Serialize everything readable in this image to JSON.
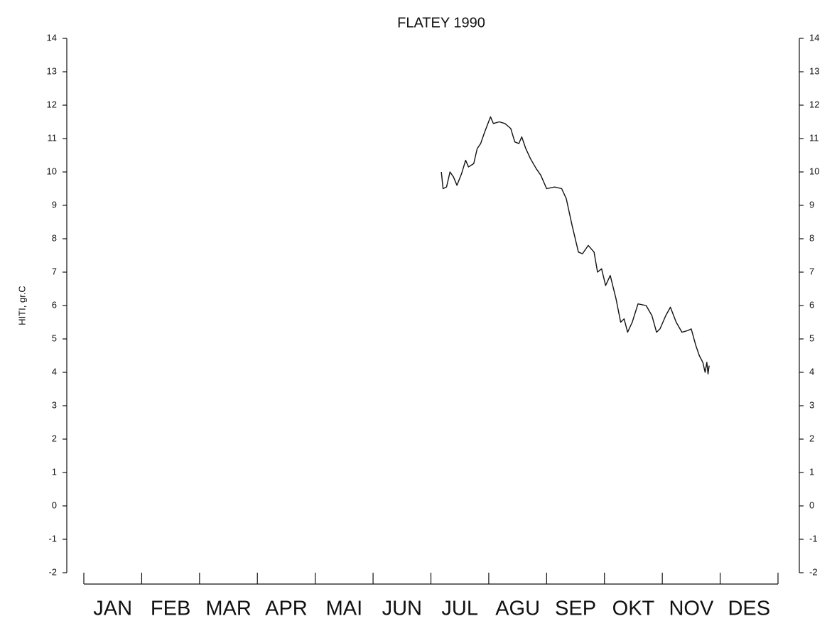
{
  "chart_data": {
    "type": "line",
    "title": "FLATEY 1990",
    "y_label": "HITI, gr.C",
    "categories": [
      "JAN",
      "FEB",
      "MAR",
      "APR",
      "MAI",
      "JUN",
      "JUL",
      "AGU",
      "SEP",
      "OKT",
      "NOV",
      "DES"
    ],
    "xlim": [
      0,
      12
    ],
    "xticks": [
      0,
      1,
      2,
      3,
      4,
      5,
      6,
      7,
      8,
      9,
      10,
      11,
      12
    ],
    "ylim": [
      -2,
      14
    ],
    "yticks": [
      -2,
      -1,
      0,
      1,
      2,
      3,
      4,
      5,
      6,
      7,
      8,
      9,
      10,
      11,
      12,
      13,
      14
    ],
    "grid": false,
    "series": [
      {
        "color": "#111111",
        "x": [
          6.18,
          6.21,
          6.27,
          6.33,
          6.39,
          6.45,
          6.53,
          6.6,
          6.65,
          6.74,
          6.8,
          6.86,
          6.93,
          7.03,
          7.08,
          7.18,
          7.28,
          7.38,
          7.45,
          7.52,
          7.57,
          7.64,
          7.72,
          7.82,
          7.9,
          8.0,
          8.14,
          8.26,
          8.34,
          8.44,
          8.55,
          8.62,
          8.72,
          8.82,
          8.88,
          8.95,
          9.02,
          9.1,
          9.2,
          9.28,
          9.34,
          9.4,
          9.48,
          9.58,
          9.72,
          9.82,
          9.9,
          9.96,
          10.06,
          10.14,
          10.24,
          10.34,
          10.44,
          10.5,
          10.58,
          10.64,
          10.7,
          10.74,
          10.77,
          10.79,
          10.81
        ],
        "values": [
          10.0,
          9.5,
          9.55,
          10.0,
          9.85,
          9.6,
          9.95,
          10.35,
          10.15,
          10.25,
          10.7,
          10.85,
          11.2,
          11.65,
          11.45,
          11.5,
          11.45,
          11.3,
          10.9,
          10.85,
          11.05,
          10.7,
          10.4,
          10.1,
          9.9,
          9.5,
          9.55,
          9.5,
          9.2,
          8.4,
          7.6,
          7.55,
          7.8,
          7.6,
          7.0,
          7.1,
          6.6,
          6.9,
          6.2,
          5.5,
          5.6,
          5.2,
          5.5,
          6.05,
          6.0,
          5.7,
          5.2,
          5.3,
          5.7,
          5.95,
          5.5,
          5.2,
          5.25,
          5.3,
          4.8,
          4.5,
          4.3,
          4.0,
          4.3,
          3.95,
          4.2
        ]
      }
    ]
  }
}
